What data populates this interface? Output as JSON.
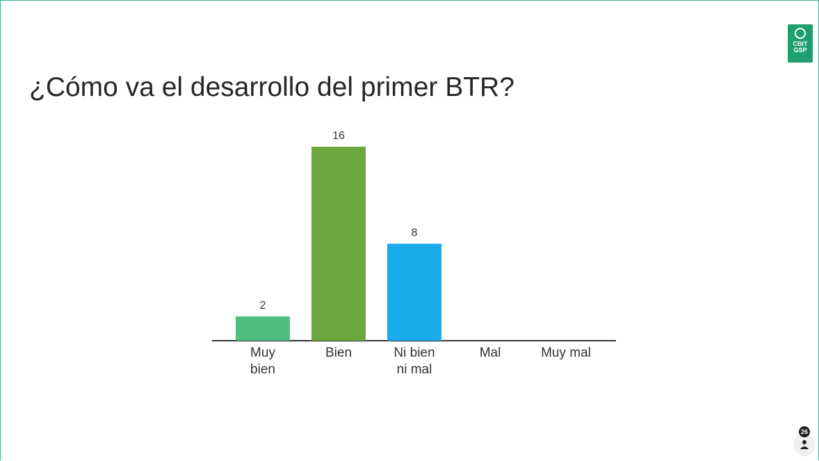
{
  "chart_data": {
    "type": "bar",
    "title": "¿Cómo va el desarrollo del primer BTR?",
    "categories": [
      "Muy bien",
      "Bien",
      "Ni bien ni mal",
      "Mal",
      "Muy mal"
    ],
    "values": [
      2,
      16,
      8,
      0,
      0
    ],
    "colors": [
      "#4cbf80",
      "#6ca83f",
      "#1aabeb"
    ]
  },
  "logo": {
    "lines": [
      "CBIT",
      "GSP"
    ]
  },
  "participants": 26
}
